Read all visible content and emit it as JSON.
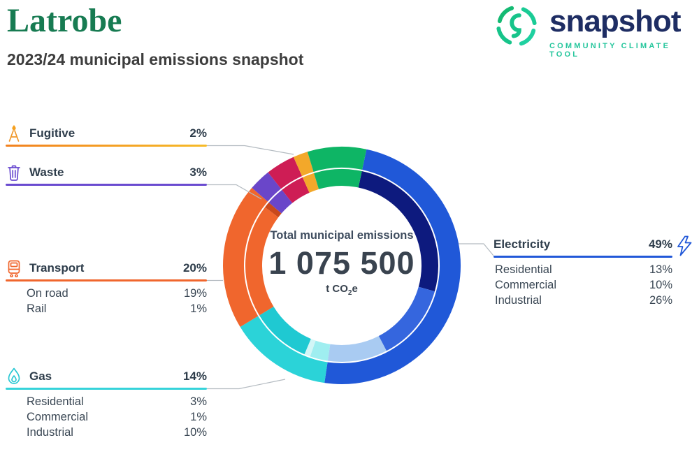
{
  "header": {
    "title": "Latrobe",
    "subtitle": "2023/24 municipal emissions snapshot"
  },
  "logo": {
    "brand": "snapshot",
    "tagline": "COMMUNITY CLIMATE TOOL",
    "accent_green": "#17c48a",
    "navy": "#1e2d63"
  },
  "donut_center": {
    "label": "Total municipal emissions",
    "value": "1 075 500",
    "unit_prefix": "t CO",
    "unit_sub": "2",
    "unit_suffix": "e"
  },
  "categories": {
    "fugitive": {
      "label": "Fugitive",
      "percent": "2%",
      "color": "#f3a82a"
    },
    "waste": {
      "label": "Waste",
      "percent": "3%",
      "color": "#6a4bd0"
    },
    "transport": {
      "label": "Transport",
      "percent": "20%",
      "color": "#f0662d",
      "breakdown": [
        {
          "label": "On road",
          "percent": "19%"
        },
        {
          "label": "Rail",
          "percent": "1%"
        }
      ]
    },
    "gas": {
      "label": "Gas",
      "percent": "14%",
      "color": "#2bd3d8",
      "breakdown": [
        {
          "label": "Residential",
          "percent": "3%"
        },
        {
          "label": "Commercial",
          "percent": "1%"
        },
        {
          "label": "Industrial",
          "percent": "10%"
        }
      ]
    },
    "electricity": {
      "label": "Electricity",
      "percent": "49%",
      "color": "#2158d8",
      "breakdown": [
        {
          "label": "Residential",
          "percent": "13%"
        },
        {
          "label": "Commercial",
          "percent": "10%"
        },
        {
          "label": "Industrial",
          "percent": "26%"
        }
      ]
    }
  },
  "chart_data": {
    "type": "donut",
    "title": "Total municipal emissions",
    "total_value": 1075500,
    "total_display": "1 075 500",
    "unit": "t CO2e",
    "start_angle_deg": 12,
    "outer_ring": [
      {
        "name": "Electricity",
        "percent": 49,
        "color": "#2058d8"
      },
      {
        "name": "Gas",
        "percent": 14,
        "color": "#2bd3d8"
      },
      {
        "name": "Transport",
        "percent": 20,
        "color": "#f0662d"
      },
      {
        "name": "Waste",
        "percent": 3,
        "color": "#6a46c9"
      },
      {
        "name": "unlabeled-crimson",
        "percent": 4,
        "color": "#ce1d55"
      },
      {
        "name": "Fugitive",
        "percent": 2,
        "color": "#f3a82a"
      },
      {
        "name": "unlabeled-green",
        "percent": 8,
        "color": "#0eb565"
      }
    ],
    "inner_ring": [
      {
        "name": "Electricity - Industrial",
        "percent": 26,
        "color": "#0d1a7e"
      },
      {
        "name": "Electricity - Residential",
        "percent": 13,
        "color": "#3566de"
      },
      {
        "name": "Electricity - Commercial",
        "percent": 10,
        "color": "#a9cbf2"
      },
      {
        "name": "Gas - Residential",
        "percent": 3,
        "color": "#9feef0"
      },
      {
        "name": "Gas - Commercial",
        "percent": 1,
        "color": "#d3f6f7"
      },
      {
        "name": "Gas - Industrial",
        "percent": 10,
        "color": "#1fc9d2"
      },
      {
        "name": "Transport - On road",
        "percent": 19,
        "color": "#f0662d"
      },
      {
        "name": "Transport - Rail",
        "percent": 1,
        "color": "#c9491c"
      },
      {
        "name": "Waste",
        "percent": 3,
        "color": "#6a46c9"
      },
      {
        "name": "unlabeled-crimson",
        "percent": 4,
        "color": "#ce1d55"
      },
      {
        "name": "Fugitive",
        "percent": 2,
        "color": "#f3a82a"
      },
      {
        "name": "unlabeled-green",
        "percent": 8,
        "color": "#0eb565"
      }
    ]
  }
}
